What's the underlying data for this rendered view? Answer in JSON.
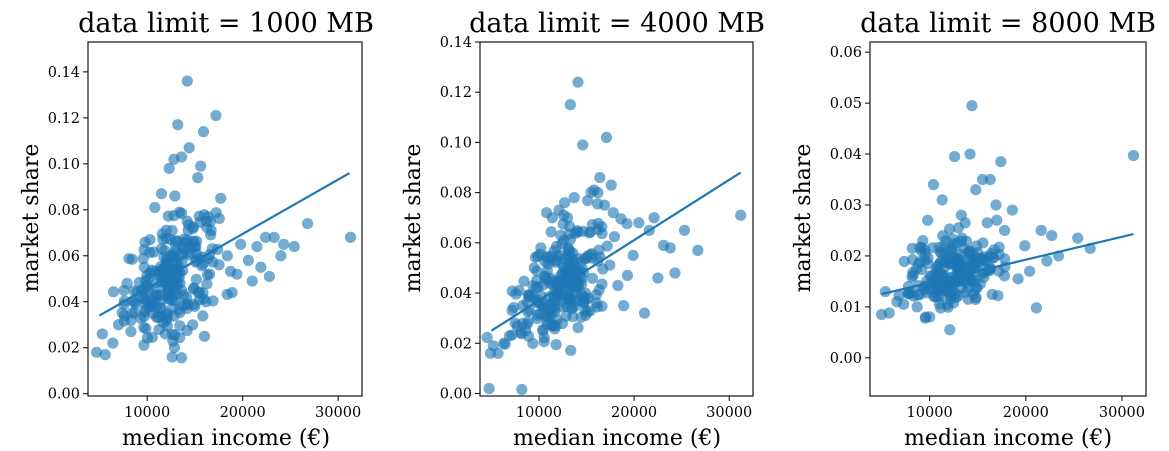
{
  "chart_data": [
    {
      "type": "scatter",
      "title": "data limit = 1000 MB",
      "xlabel": "median income (€)",
      "ylabel": "market share",
      "xlim": [
        3800,
        32500
      ],
      "ylim": [
        -0.001,
        0.153
      ],
      "xticks": [
        10000,
        20000,
        30000
      ],
      "xtick_labels": [
        "10000",
        "20000",
        "30000"
      ],
      "yticks": [
        0.0,
        0.02,
        0.04,
        0.06,
        0.08,
        0.1,
        0.12,
        0.14
      ],
      "ytick_labels": [
        "0.00",
        "0.02",
        "0.04",
        "0.06",
        "0.08",
        "0.10",
        "0.12",
        "0.14"
      ],
      "grid": false,
      "point_color": "#1f77b4",
      "line_color": "#1f77b4",
      "trend_line": {
        "x": [
          5000,
          31200
        ],
        "y": [
          0.034,
          0.096
        ]
      },
      "points": {
        "x": [
          4700,
          5600,
          5300,
          6400,
          7000,
          7600,
          7900,
          8300,
          8800,
          9400,
          9700,
          10300,
          10800,
          11500,
          12300,
          12800,
          13200,
          13600,
          14200,
          14400,
          15300,
          15900,
          16400,
          17200,
          17700,
          18400,
          18900,
          19400,
          19800,
          20600,
          21000,
          21500,
          21900,
          22400,
          22800,
          23300,
          24000,
          24300,
          25400,
          26800,
          31300,
          12900,
          13400,
          11900,
          12100,
          12600,
          15600,
          16200,
          16700
        ],
        "y": [
          0.018,
          0.017,
          0.026,
          0.022,
          0.03,
          0.034,
          0.048,
          0.027,
          0.039,
          0.045,
          0.055,
          0.067,
          0.081,
          0.087,
          0.098,
          0.102,
          0.117,
          0.103,
          0.136,
          0.107,
          0.094,
          0.114,
          0.077,
          0.121,
          0.085,
          0.06,
          0.044,
          0.052,
          0.065,
          0.058,
          0.049,
          0.064,
          0.055,
          0.068,
          0.051,
          0.068,
          0.06,
          0.065,
          0.064,
          0.074,
          0.068,
          0.086,
          0.079,
          0.026,
          0.033,
          0.071,
          0.099,
          0.075,
          0.071
        ]
      },
      "cluster": {
        "x_center": 12500,
        "y_center": 0.05,
        "x_spread": 2400,
        "y_spread": 0.012,
        "count": 230
      }
    },
    {
      "type": "scatter",
      "title": "data limit = 4000 MB",
      "xlabel": "median income (€)",
      "ylabel": "market share",
      "xlim": [
        3800,
        32500
      ],
      "ylim": [
        -0.001,
        0.14
      ],
      "xticks": [
        10000,
        20000,
        30000
      ],
      "xtick_labels": [
        "10000",
        "20000",
        "30000"
      ],
      "yticks": [
        0.0,
        0.02,
        0.04,
        0.06,
        0.08,
        0.1,
        0.12,
        0.14
      ],
      "ytick_labels": [
        "0.00",
        "0.02",
        "0.04",
        "0.06",
        "0.08",
        "0.10",
        "0.12",
        "0.14"
      ],
      "grid": false,
      "point_color": "#1f77b4",
      "line_color": "#1f77b4",
      "trend_line": {
        "x": [
          5000,
          31200
        ],
        "y": [
          0.025,
          0.088
        ]
      },
      "points": {
        "x": [
          4900,
          5700,
          5200,
          6300,
          6900,
          7500,
          7900,
          8600,
          8300,
          9100,
          9500,
          10200,
          10800,
          11400,
          12100,
          12700,
          13300,
          13700,
          14100,
          14600,
          15300,
          15800,
          16400,
          17100,
          17600,
          18300,
          18900,
          19300,
          19900,
          20500,
          21100,
          21600,
          22100,
          22500,
          23100,
          23800,
          24300,
          25300,
          26700,
          31200,
          13000,
          12300,
          16200,
          16900,
          12600,
          11800,
          17800
        ],
        "y": [
          0.016,
          0.016,
          0.019,
          0.02,
          0.023,
          0.028,
          0.041,
          0.025,
          0.035,
          0.039,
          0.05,
          0.058,
          0.072,
          0.07,
          0.073,
          0.076,
          0.115,
          0.078,
          0.124,
          0.099,
          0.064,
          0.081,
          0.086,
          0.102,
          0.083,
          0.043,
          0.035,
          0.047,
          0.055,
          0.068,
          0.032,
          0.065,
          0.07,
          0.046,
          0.059,
          0.058,
          0.048,
          0.065,
          0.057,
          0.071,
          0.07,
          0.063,
          0.08,
          0.075,
          0.071,
          0.027,
          0.072
        ]
      },
      "cluster": {
        "x_center": 12500,
        "y_center": 0.044,
        "x_spread": 2400,
        "y_spread": 0.011,
        "count": 230
      }
    },
    {
      "type": "scatter",
      "title": "data limit = 8000 MB",
      "xlabel": "median income (€)",
      "ylabel": "market share",
      "xlim": [
        3800,
        32500
      ],
      "ylim": [
        -0.0075,
        0.062
      ],
      "xticks": [
        10000,
        20000,
        30000
      ],
      "xtick_labels": [
        "10000",
        "20000",
        "30000"
      ],
      "yticks": [
        0.0,
        0.01,
        0.02,
        0.03,
        0.04,
        0.05,
        0.06
      ],
      "ytick_labels": [
        "0.00",
        "0.01",
        "0.02",
        "0.03",
        "0.04",
        "0.05",
        "0.06"
      ],
      "grid": false,
      "point_color": "#1f77b4",
      "line_color": "#1f77b4",
      "trend_line": {
        "x": [
          5000,
          31200
        ],
        "y": [
          0.0125,
          0.0243
        ]
      },
      "points": {
        "x": [
          5000,
          5800,
          5400,
          6600,
          7300,
          7800,
          8200,
          8700,
          9300,
          9800,
          10400,
          10800,
          11700,
          12600,
          13000,
          13300,
          14200,
          14400,
          14800,
          15500,
          16300,
          16900,
          17400,
          17800,
          18600,
          19200,
          19900,
          20400,
          21100,
          21600,
          22200,
          22700,
          23400,
          25400,
          26700,
          31200,
          12100,
          13700,
          16000,
          17200,
          11300,
          9600
        ],
        "y": [
          0.0085,
          0.0088,
          0.013,
          0.011,
          0.0105,
          0.014,
          0.0215,
          0.01,
          0.023,
          0.027,
          0.034,
          0.018,
          0.023,
          0.0395,
          0.0255,
          0.028,
          0.04,
          0.0495,
          0.033,
          0.035,
          0.035,
          0.03,
          0.0385,
          0.025,
          0.029,
          0.0155,
          0.022,
          0.017,
          0.0098,
          0.025,
          0.019,
          0.024,
          0.02,
          0.0235,
          0.0215,
          0.0397,
          0.0055,
          0.0265,
          0.0265,
          0.017,
          0.031,
          0.008
        ]
      },
      "cluster": {
        "x_center": 12500,
        "y_center": 0.0165,
        "x_spread": 2400,
        "y_spread": 0.0034,
        "count": 230
      }
    }
  ]
}
